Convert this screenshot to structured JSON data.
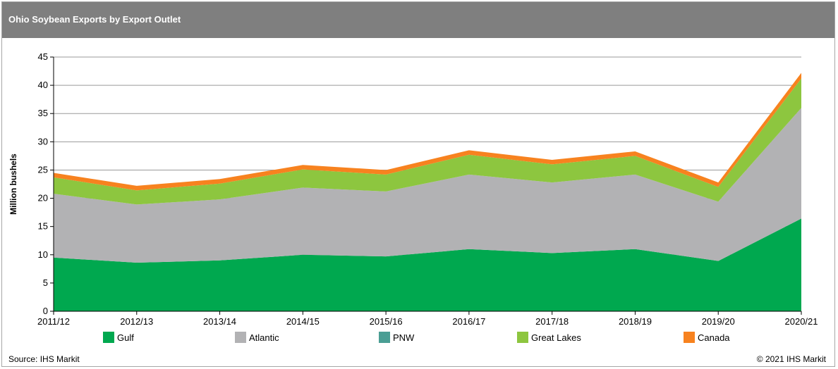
{
  "header": {
    "title": "Ohio Soybean Exports by Export Outlet"
  },
  "footer": {
    "source": "Source: IHS Markit",
    "copyright": "© 2021 IHS Markit"
  },
  "chart_data": {
    "type": "area",
    "stacked": true,
    "title": "Ohio Soybean Exports by Export Outlet",
    "xlabel": "",
    "ylabel": "Million bushels",
    "ylim": [
      0,
      45
    ],
    "yticks": [
      0,
      5,
      10,
      15,
      20,
      25,
      30,
      35,
      40,
      45
    ],
    "grid": true,
    "legend_position": "bottom",
    "categories": [
      "2011/12",
      "2012/13",
      "2013/14",
      "2014/15",
      "2015/16",
      "2016/17",
      "2017/18",
      "2018/19",
      "2019/20",
      "2020/21"
    ],
    "series": [
      {
        "name": "Gulf",
        "color": "#00a84f",
        "values": [
          9.5,
          8.6,
          9.0,
          10.0,
          9.7,
          11.0,
          10.3,
          11.0,
          8.9,
          16.4
        ]
      },
      {
        "name": "Atlantic",
        "color": "#b2b2b4",
        "values": [
          11.3,
          10.3,
          10.8,
          11.9,
          11.5,
          13.2,
          12.5,
          13.2,
          10.5,
          19.6
        ]
      },
      {
        "name": "PNW",
        "color": "#4a9e94",
        "values": [
          0,
          0,
          0,
          0,
          0,
          0,
          0,
          0,
          0,
          0
        ]
      },
      {
        "name": "Great Lakes",
        "color": "#8dc63f",
        "values": [
          2.9,
          2.5,
          2.8,
          3.2,
          3.0,
          3.5,
          3.2,
          3.3,
          2.6,
          5.2
        ]
      },
      {
        "name": "Canada",
        "color": "#f7821f",
        "values": [
          0.8,
          0.8,
          0.8,
          0.8,
          0.8,
          0.8,
          0.8,
          0.8,
          0.8,
          1.0
        ]
      }
    ]
  }
}
